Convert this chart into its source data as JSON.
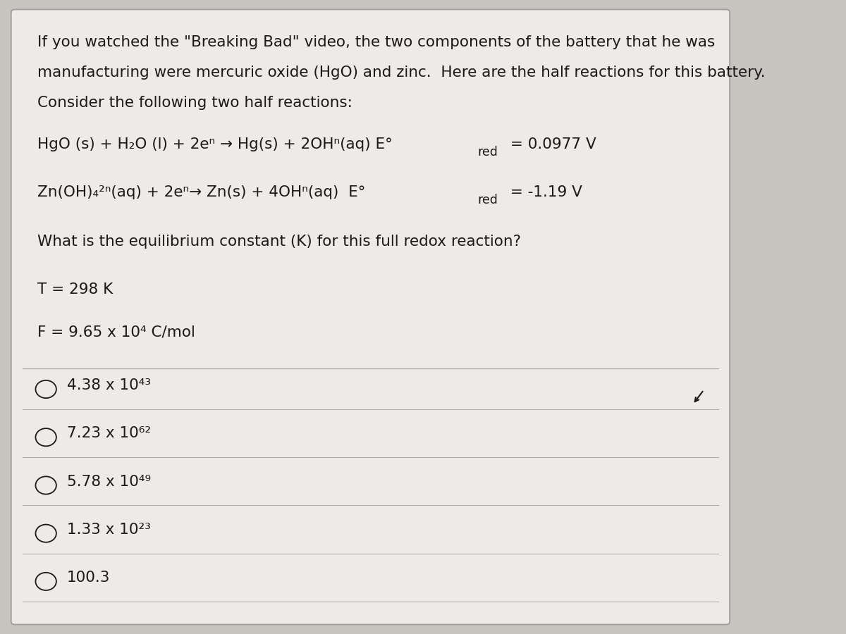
{
  "bg_color": "#c8c4c0",
  "card_color": "#edeae7",
  "text_color": "#1a1a1a",
  "title_lines": [
    "If you watched the \"Breaking Bad\" video, the two components of the battery that he was",
    "manufacturing were mercuric oxide (HgO) and zinc.  Here are the half reactions for this battery.",
    "Consider the following two half reactions:"
  ],
  "question": "What is the equilibrium constant (K) for this full redox reaction?",
  "given1": "T = 298 K",
  "given2": "F = 9.65 x 10⁴ C/mol",
  "choices": [
    "4.38 x 10⁴³",
    "7.23 x 10⁶²",
    "5.78 x 10⁴⁹",
    "1.33 x 10²³",
    "100.3"
  ],
  "font_size_title": 15.5,
  "font_size_reaction": 15.5,
  "font_size_question": 15.5,
  "font_size_given": 15.5,
  "font_size_choice": 15.5,
  "divider_color": "#aaaaaa",
  "card_edge_color": "#999999"
}
